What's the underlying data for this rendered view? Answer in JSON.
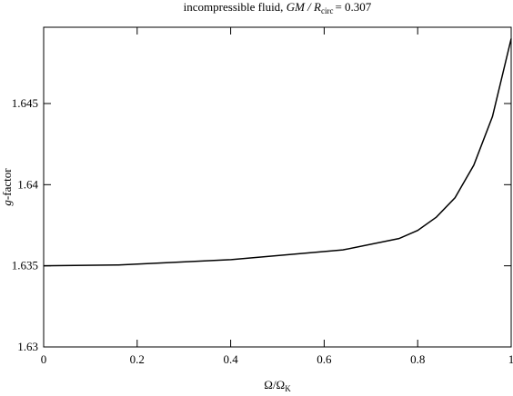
{
  "chart_data": {
    "type": "line",
    "title": [
      "incompressible fluid, ",
      "GM / R",
      "circ",
      "= 0.307"
    ],
    "xlabel": [
      "Ω/Ω",
      "K"
    ],
    "ylabel": [
      "g",
      "-factor"
    ],
    "series": [
      {
        "color": "#000000",
        "x": [
          0,
          0.16,
          0.4,
          0.64,
          0.76,
          0.8,
          0.84,
          0.88,
          0.92,
          0.96,
          1.0
        ],
        "values": [
          1.635,
          1.63505,
          1.63538,
          1.63598,
          1.63668,
          1.63718,
          1.638,
          1.6392,
          1.6412,
          1.6442,
          1.649
        ]
      }
    ],
    "xlim": [
      0,
      1
    ],
    "xticks": [
      0,
      0.2,
      0.4,
      0.6,
      0.8,
      1
    ],
    "ylim": [
      1.63,
      1.6497
    ],
    "yticks": [
      1.63,
      1.635,
      1.64,
      1.645
    ]
  }
}
